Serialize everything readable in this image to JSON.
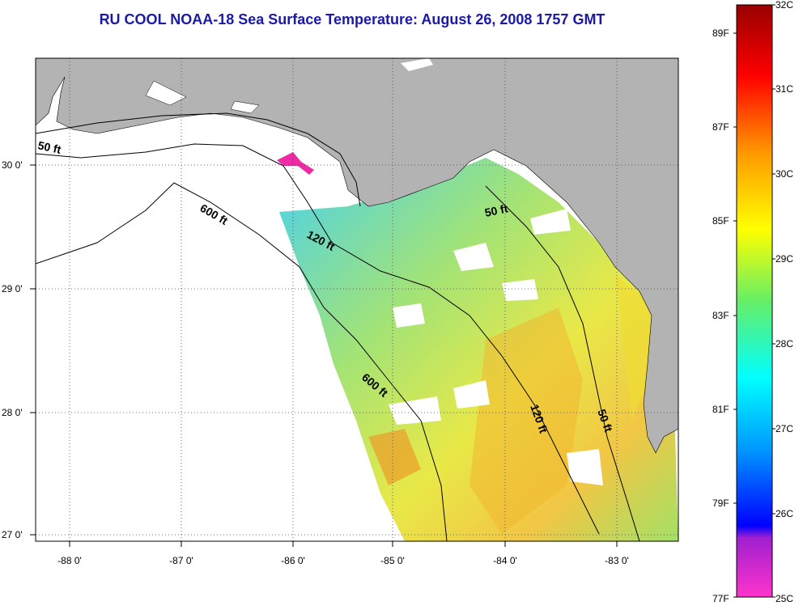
{
  "title": "RU COOL  NOAA-18  Sea Surface Temperature:  August 26, 2008 1757 GMT",
  "x_ticks": [
    "-88 0'",
    "-87 0'",
    "-86 0'",
    "-85 0'",
    "-84 0'",
    "-83 0'"
  ],
  "y_ticks": [
    "30 0'",
    "29 0'",
    "28 0'",
    "27 0'"
  ],
  "contour_labels": [
    "50 ft",
    "600 ft",
    "120 ft",
    "50 ft",
    "600 ft",
    "120 ft",
    "50 ft"
  ],
  "colorbar": {
    "celsius_labels": [
      "32C",
      "31C",
      "30C",
      "29C",
      "28C",
      "27C",
      "26C",
      "25C"
    ],
    "fahrenheit_labels": [
      "89F",
      "87F",
      "85F",
      "83F",
      "81F",
      "79F",
      "77F"
    ]
  },
  "colors": {
    "land": "#b3b3b3",
    "title": "#1a1aa6",
    "frame": "#000000"
  }
}
